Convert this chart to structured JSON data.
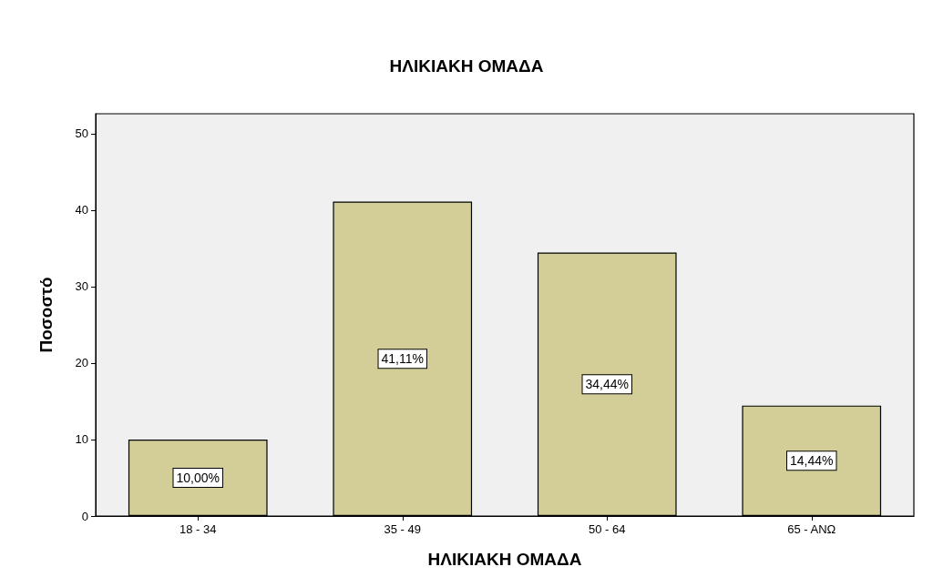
{
  "chart_data": {
    "type": "bar",
    "title": "ΗΛΙΚΙΑΚΗ ΟΜΑΔΑ",
    "xlabel": "ΗΛΙΚΙΑΚΗ ΟΜΑΔΑ",
    "ylabel": "Ποσοστό",
    "categories": [
      "18 - 34",
      "35 - 49",
      "50 - 64",
      "65 - ΑΝΩ"
    ],
    "values": [
      10.0,
      41.11,
      34.44,
      14.44
    ],
    "value_labels": [
      "10,00%",
      "41,11%",
      "34,44%",
      "14,44%"
    ],
    "color": "#d3ce97",
    "ylim": [
      0,
      52.6
    ],
    "yticks": [
      0,
      10,
      20,
      30,
      40,
      50
    ],
    "grid": false
  }
}
